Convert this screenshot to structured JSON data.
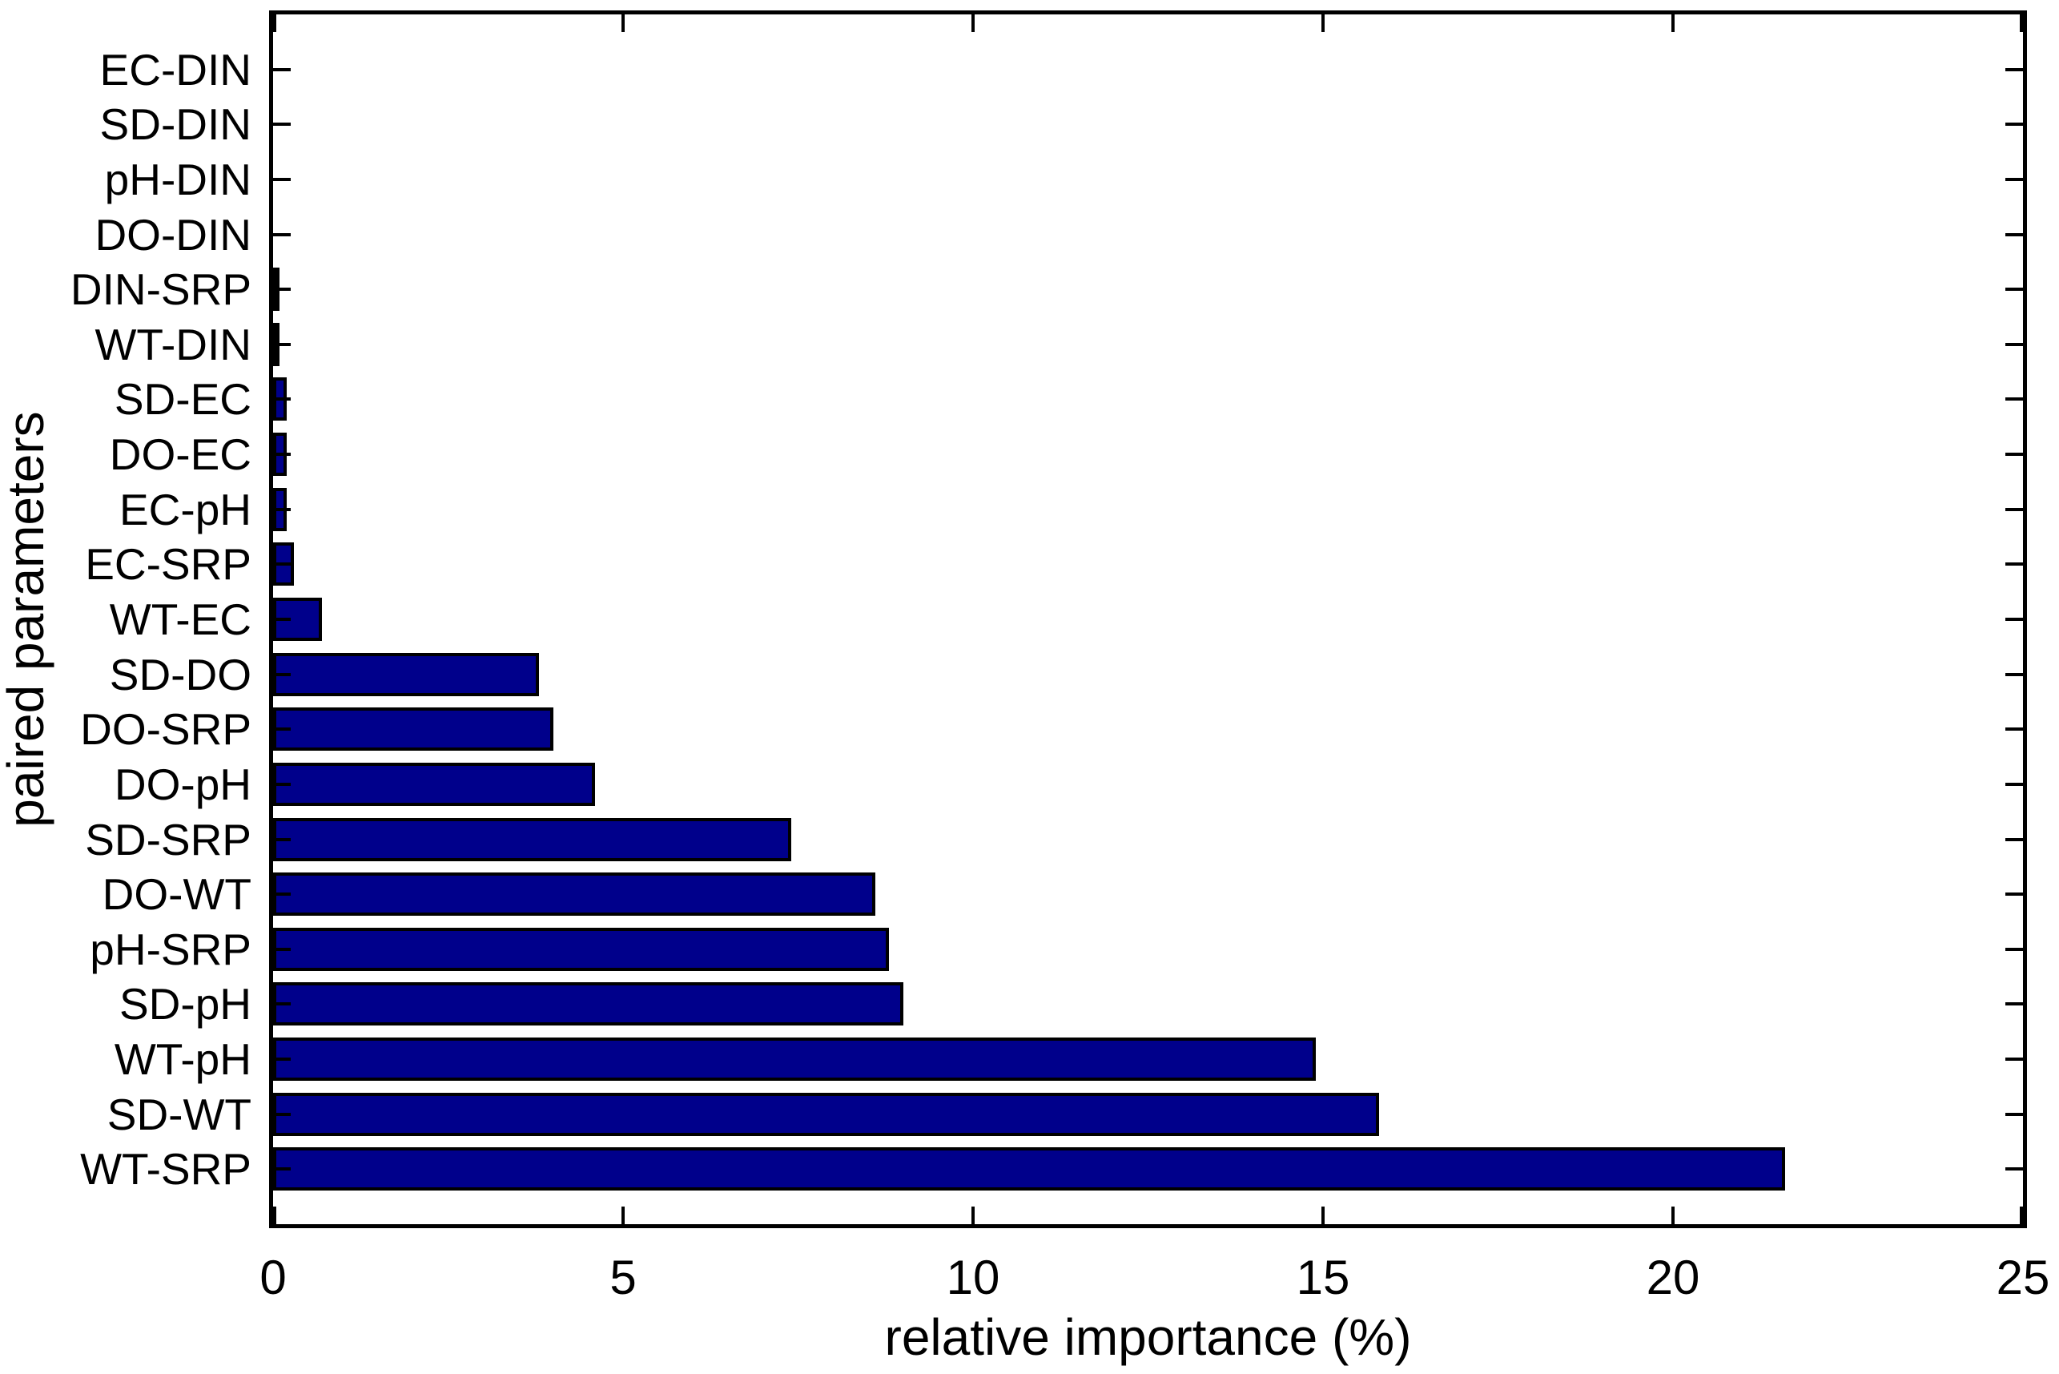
{
  "figure": {
    "background": "#ffffff",
    "axis_color": "#000000"
  },
  "chart_data": {
    "type": "bar",
    "orientation": "horizontal",
    "title": "",
    "xlabel": "relative importance (%)",
    "ylabel": "paired parameters",
    "xlim": [
      0,
      25
    ],
    "xticks": [
      "0",
      "5",
      "10",
      "15",
      "20",
      "25"
    ],
    "xtick_values": [
      0,
      5,
      10,
      15,
      20,
      25
    ],
    "grid": "off",
    "legend": "none",
    "bar_color": "#00008B",
    "bar_border_color": "#000000",
    "categories": [
      "EC-DIN",
      "SD-DIN",
      "pH-DIN",
      "DO-DIN",
      "DIN-SRP",
      "WT-DIN",
      "SD-EC",
      "DO-EC",
      "EC-pH",
      "EC-SRP",
      "WT-EC",
      "SD-DO",
      "DO-SRP",
      "DO-pH",
      "SD-SRP",
      "DO-WT",
      "pH-SRP",
      "SD-pH",
      "WT-pH",
      "SD-WT",
      "WT-SRP"
    ],
    "values": [
      0,
      0,
      0,
      0,
      0.05,
      0.05,
      0.2,
      0.2,
      0.2,
      0.3,
      0.7,
      3.8,
      4.0,
      4.6,
      7.4,
      8.6,
      8.8,
      9.0,
      14.9,
      15.8,
      21.6
    ],
    "values_note": "percent, listed top-to-bottom matching categories"
  }
}
